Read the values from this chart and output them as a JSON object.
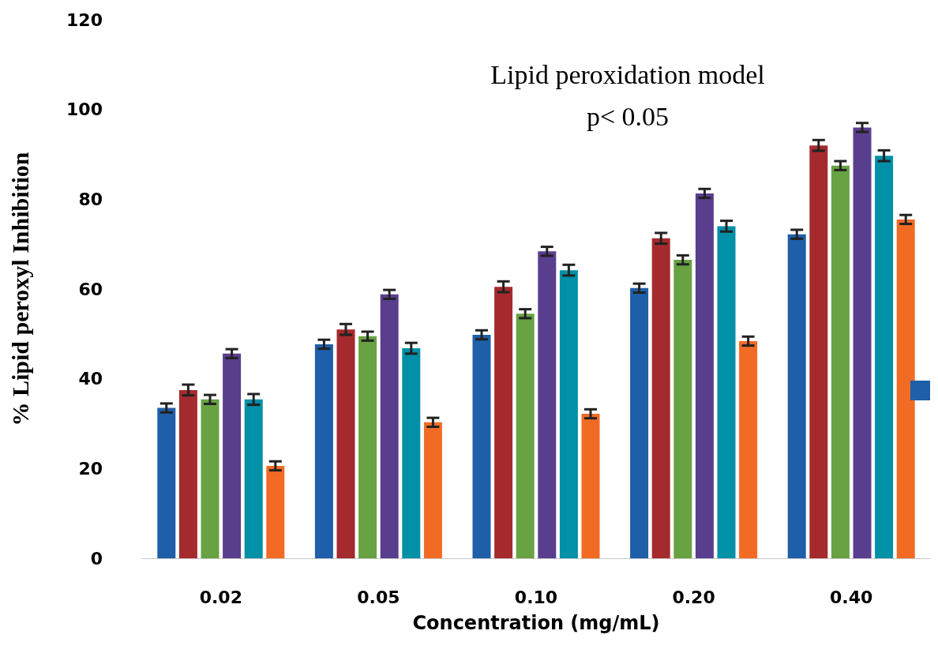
{
  "chart_data": {
    "type": "bar",
    "title": "Lipid peroxidation model",
    "subtitle": "p< 0.05",
    "xlabel": "Concentration (mg/mL)",
    "ylabel": "% Lipid peroxyl Inhibition",
    "categories": [
      "0.02",
      "0.05",
      "0.10",
      "0.20",
      "0.40"
    ],
    "series": [
      {
        "color": "#1f5ea8",
        "values": [
          33.5,
          47.7,
          49.8,
          60.2,
          72.2
        ],
        "errors": [
          1,
          1,
          1,
          1,
          1
        ]
      },
      {
        "color": "#a52a2e",
        "values": [
          37.5,
          51,
          60.5,
          71.3,
          92
        ],
        "errors": [
          1.2,
          1.2,
          1.2,
          1.2,
          1.2
        ]
      },
      {
        "color": "#68a243",
        "values": [
          35.4,
          49.5,
          54.5,
          66.5,
          87.5
        ],
        "errors": [
          1,
          1,
          1,
          1,
          1
        ]
      },
      {
        "color": "#5a3e8e",
        "values": [
          45.6,
          58.8,
          68.4,
          81.3,
          96
        ],
        "errors": [
          1,
          1,
          1,
          1,
          1
        ]
      },
      {
        "color": "#0090a8",
        "values": [
          35.4,
          46.8,
          64.2,
          74,
          89.7
        ],
        "errors": [
          1.2,
          1.2,
          1.2,
          1.2,
          1.2
        ]
      },
      {
        "color": "#f26b25",
        "values": [
          20.6,
          30.3,
          32.2,
          48.4,
          75.5
        ],
        "errors": [
          1,
          1,
          1,
          1,
          1
        ]
      }
    ],
    "ylim": [
      0,
      120
    ],
    "yticks": [
      0,
      20,
      40,
      60,
      80,
      100,
      120
    ],
    "grid": false
  }
}
